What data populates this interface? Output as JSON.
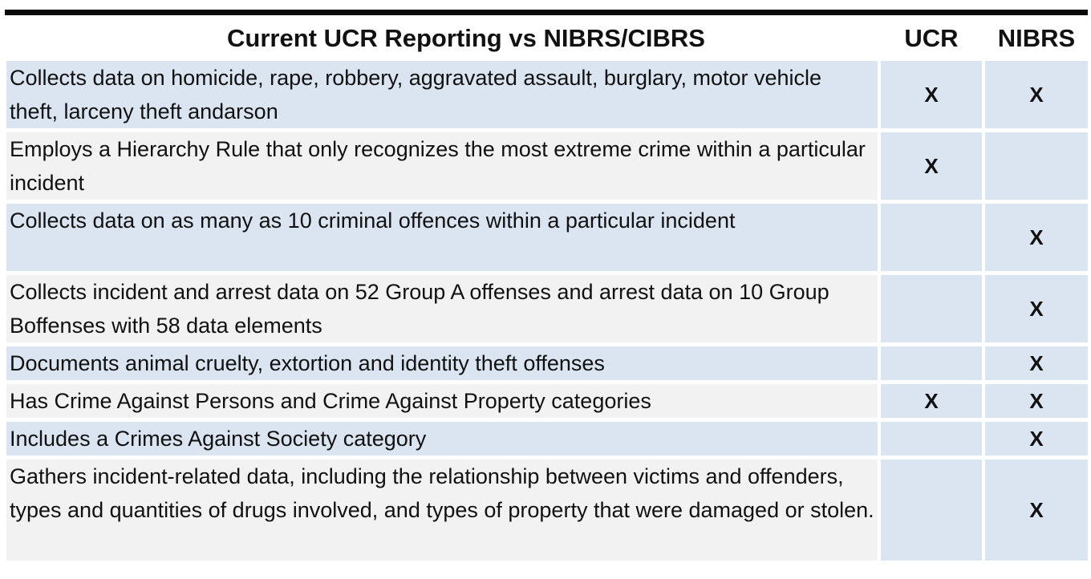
{
  "table": {
    "headers": {
      "description": "Current UCR Reporting vs NIBRS/CIBRS",
      "ucr": "UCR",
      "nibrs": "NIBRS"
    },
    "rows": [
      {
        "text": "Collects data on homicide, rape, robbery, aggravated assault, burglary, motor vehicle theft, larceny theft andarson",
        "ucr": "X",
        "nibrs": "X"
      },
      {
        "text": "Employs a Hierarchy Rule that only recognizes the most extreme crime within a particular incident",
        "ucr": "X",
        "nibrs": ""
      },
      {
        "text": "Collects data on as many as 10 criminal offences within a particular incident",
        "ucr": "",
        "nibrs": "X"
      },
      {
        "text": "Collects incident and arrest data on 52 Group A offenses and arrest data on 10 Group Boffenses with 58 data elements",
        "ucr": "",
        "nibrs": "X"
      },
      {
        "text": "Documents animal cruelty, extortion and identity theft offenses",
        "ucr": "",
        "nibrs": "X"
      },
      {
        "text": "Has Crime Against Persons and Crime Against Property categories",
        "ucr": "X",
        "nibrs": "X"
      },
      {
        "text": "Includes a Crimes Against Society category",
        "ucr": "",
        "nibrs": "X"
      },
      {
        "text": "Gathers incident-related data, including the relationship between victims and offenders, types and quantities of drugs involved, and types of property that were damaged or stolen.",
        "ucr": "",
        "nibrs": "X"
      }
    ]
  },
  "colors": {
    "rule": "#0a0a0a",
    "row_blue": "#dbe5f1",
    "row_gray": "#f2f2f2"
  }
}
